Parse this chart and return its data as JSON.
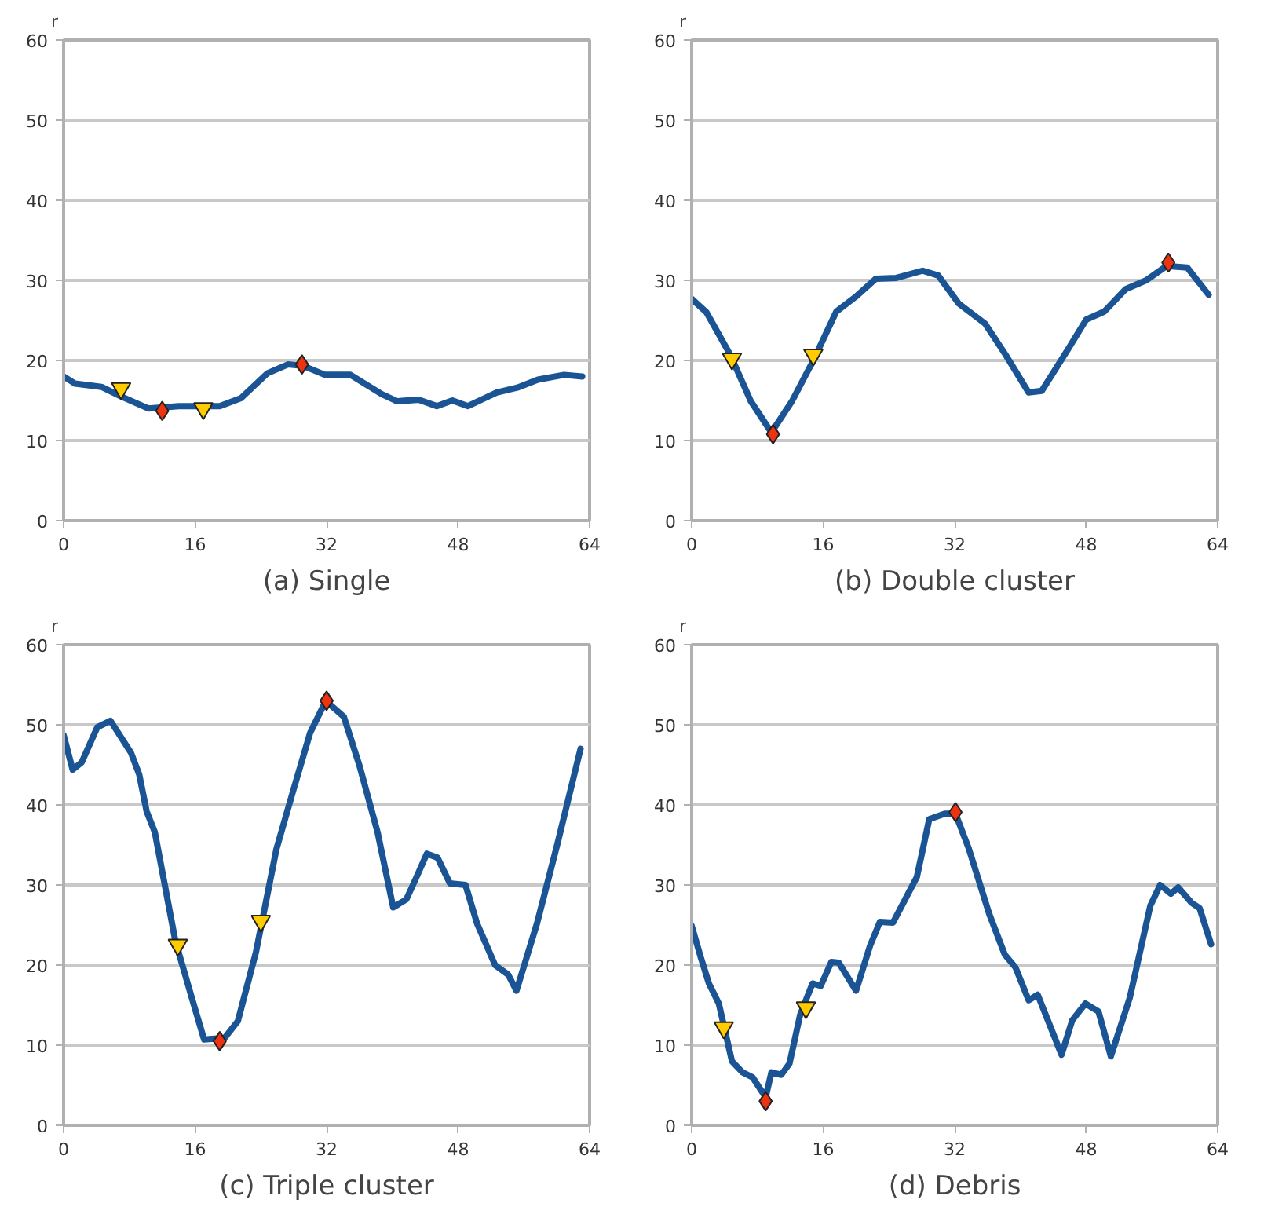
{
  "chart_data": [
    {
      "type": "line",
      "title": "(a) Single",
      "ylabel": "r",
      "xlim": [
        0,
        64
      ],
      "ylim": [
        0,
        60
      ],
      "xticks": [
        0,
        16,
        32,
        48,
        64
      ],
      "yticks": [
        0,
        10,
        20,
        30,
        40,
        50,
        60
      ],
      "grid": "y",
      "series": [
        {
          "color": "#1a5494",
          "marker": "none",
          "line_style": "solid",
          "x": [
            0,
            1.4,
            4.6,
            7,
            10.3,
            14,
            19,
            21.6,
            24.8,
            27.3,
            29.2,
            31.8,
            34.9,
            38.7,
            40.6,
            43.2,
            45.4,
            47.3,
            49.2,
            52.7,
            55.2,
            57.7,
            60.9,
            63.1
          ],
          "values": [
            18.0,
            17.1,
            16.7,
            15.5,
            14.0,
            14.3,
            14.3,
            15.3,
            18.4,
            19.5,
            19.3,
            18.2,
            18.2,
            15.8,
            14.9,
            15.1,
            14.3,
            15.0,
            14.3,
            16.0,
            16.6,
            17.6,
            18.2,
            18.0
          ]
        },
        {
          "type": "scatter",
          "color": "#ffcc00",
          "marker": "triangle",
          "x": [
            7,
            17
          ],
          "values": [
            16.5,
            14.0
          ]
        },
        {
          "type": "scatter",
          "color": "#ee3311",
          "marker": "diamond",
          "x": [
            12,
            29
          ],
          "values": [
            13.7,
            19.5
          ]
        }
      ]
    },
    {
      "type": "line",
      "title": "(b) Double cluster",
      "ylabel": "r",
      "xlim": [
        0,
        64
      ],
      "ylim": [
        0,
        60
      ],
      "xticks": [
        0,
        16,
        32,
        48,
        64
      ],
      "yticks": [
        0,
        10,
        20,
        30,
        40,
        50,
        60
      ],
      "grid": "y",
      "series": [
        {
          "color": "#1a5494",
          "marker": "none",
          "line_style": "solid",
          "x": [
            0,
            1.8,
            4.7,
            7.2,
            9.7,
            12.2,
            14.8,
            17.6,
            19.9,
            22.4,
            24.9,
            28.1,
            30.0,
            32.5,
            35.7,
            38.2,
            41.0,
            42.6,
            45.8,
            48.0,
            50.2,
            52.8,
            55.3,
            57.8,
            60.3,
            62.9
          ],
          "values": [
            27.7,
            26.0,
            20.7,
            14.9,
            11.0,
            14.9,
            20.0,
            26.1,
            27.9,
            30.2,
            30.3,
            31.2,
            30.6,
            27.1,
            24.6,
            20.7,
            16.0,
            16.2,
            21.4,
            25.1,
            26.1,
            28.9,
            30.0,
            31.8,
            31.6,
            28.2
          ]
        },
        {
          "type": "scatter",
          "color": "#ffcc00",
          "marker": "triangle",
          "x": [
            4.9,
            14.8
          ],
          "values": [
            20.2,
            20.7
          ]
        },
        {
          "type": "scatter",
          "color": "#ee3311",
          "marker": "diamond",
          "x": [
            9.9,
            58
          ],
          "values": [
            10.8,
            32.2
          ]
        }
      ]
    },
    {
      "type": "line",
      "title": "(c) Triple cluster",
      "ylabel": "r",
      "xlim": [
        0,
        64
      ],
      "ylim": [
        0,
        60
      ],
      "xticks": [
        0,
        16,
        32,
        48,
        64
      ],
      "yticks": [
        0,
        10,
        20,
        30,
        40,
        50,
        60
      ],
      "grid": "y",
      "series": [
        {
          "color": "#1a5494",
          "marker": "none",
          "line_style": "solid",
          "x": [
            0,
            1.1,
            2.2,
            4.1,
            5.7,
            8.2,
            9.2,
            10.1,
            11.1,
            13.6,
            15.8,
            17.1,
            19.6,
            21.2,
            23.4,
            25.9,
            27.8,
            30.0,
            31.9,
            34.1,
            36.0,
            38.2,
            40.1,
            41.7,
            42.9,
            44.2,
            45.5,
            47.0,
            48.9,
            50.3,
            52.5,
            54.1,
            55.1,
            57.6,
            60.1,
            62.9
          ],
          "values": [
            48.7,
            44.4,
            45.3,
            49.7,
            50.5,
            46.5,
            43.8,
            39.2,
            36.6,
            23.0,
            15.2,
            10.7,
            10.9,
            13.0,
            21.6,
            34.5,
            41.3,
            49.0,
            53.0,
            51.0,
            44.9,
            36.6,
            27.2,
            28.2,
            30.9,
            33.9,
            33.4,
            30.2,
            30.0,
            25.2,
            20.0,
            18.8,
            16.8,
            25.2,
            35.2,
            47.0
          ]
        },
        {
          "type": "scatter",
          "color": "#ffcc00",
          "marker": "triangle",
          "x": [
            13.9,
            24
          ],
          "values": [
            22.5,
            25.5
          ]
        },
        {
          "type": "scatter",
          "color": "#ee3311",
          "marker": "diamond",
          "x": [
            19,
            32
          ],
          "values": [
            10.5,
            53
          ]
        }
      ]
    },
    {
      "type": "line",
      "title": "(d) Debris",
      "ylabel": "r",
      "xlim": [
        0,
        64
      ],
      "ylim": [
        0,
        60
      ],
      "xticks": [
        0,
        16,
        32,
        48,
        64
      ],
      "yticks": [
        0,
        10,
        20,
        30,
        40,
        50,
        60
      ],
      "grid": "y",
      "series": [
        {
          "color": "#1a5494",
          "marker": "none",
          "line_style": "solid",
          "x": [
            0,
            1.1,
            2.1,
            3.3,
            4.9,
            6.2,
            7.4,
            9.0,
            9.7,
            10.9,
            11.9,
            13.2,
            14.7,
            15.7,
            17.0,
            17.9,
            20.0,
            21.7,
            22.9,
            24.5,
            27.4,
            28.9,
            30.8,
            32.1,
            33.7,
            36.2,
            38.1,
            39.4,
            41.0,
            42.1,
            43.5,
            45.0,
            46.3,
            47.9,
            49.5,
            51.0,
            53.3,
            55.8,
            57.0,
            58.3,
            59.2,
            60.8,
            61.8,
            63.2
          ],
          "values": [
            24.9,
            21.0,
            17.7,
            15.2,
            8.0,
            6.6,
            6.0,
            3.5,
            6.6,
            6.3,
            7.7,
            13.8,
            17.7,
            17.4,
            20.4,
            20.3,
            16.8,
            22.4,
            25.4,
            25.3,
            31.0,
            38.2,
            38.9,
            38.9,
            34.6,
            26.4,
            21.3,
            19.7,
            15.6,
            16.3,
            12.7,
            8.8,
            13.1,
            15.2,
            14.2,
            8.6,
            15.9,
            27.4,
            30.0,
            28.9,
            29.7,
            27.8,
            27.1,
            22.6
          ]
        },
        {
          "type": "scatter",
          "color": "#ffcc00",
          "marker": "triangle",
          "x": [
            3.9,
            13.9
          ],
          "values": [
            12.2,
            14.7
          ]
        },
        {
          "type": "scatter",
          "color": "#ee3311",
          "marker": "diamond",
          "x": [
            9.0,
            32.1
          ],
          "values": [
            3.0,
            39.1
          ]
        }
      ]
    }
  ]
}
